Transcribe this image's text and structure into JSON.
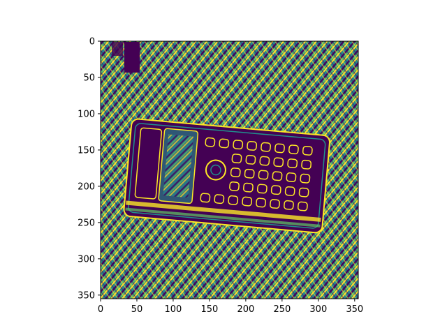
{
  "figure": {
    "x_axis": {
      "range": [
        0,
        355
      ],
      "ticks": [
        0,
        50,
        100,
        150,
        200,
        250,
        300,
        350
      ],
      "tick_labels": [
        "0",
        "50",
        "100",
        "150",
        "200",
        "250",
        "300",
        "350"
      ]
    },
    "y_axis": {
      "range": [
        0,
        355
      ],
      "inverted": true,
      "ticks": [
        0,
        50,
        100,
        150,
        200,
        250,
        300,
        350
      ],
      "tick_labels": [
        "0",
        "50",
        "100",
        "150",
        "200",
        "250",
        "300",
        "350"
      ]
    },
    "image": {
      "subject": "calculator-edge-map",
      "colormap": "viridis",
      "colors": {
        "low": "#440154",
        "mid_low": "#31688e",
        "mid": "#21918c",
        "mid_high": "#5ec962",
        "high": "#fde725"
      }
    }
  }
}
